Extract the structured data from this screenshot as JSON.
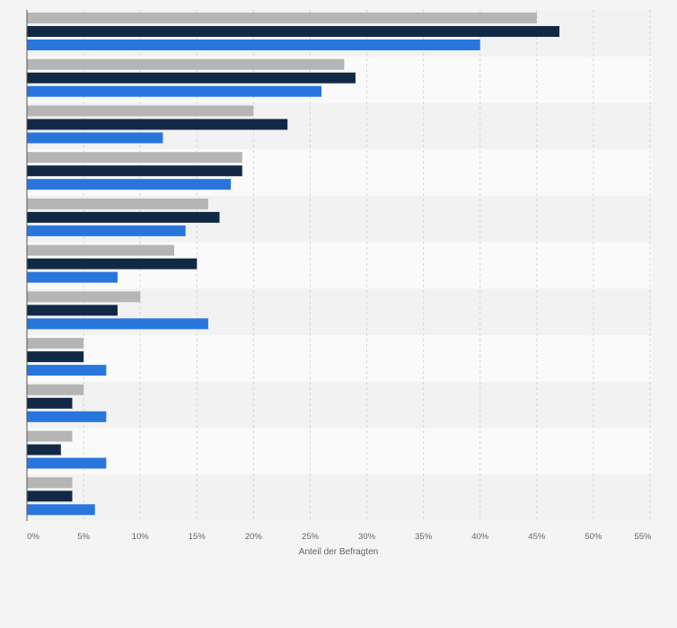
{
  "chart_data": {
    "type": "bar",
    "orientation": "horizontal",
    "xlabel": "Anteil der Befragten",
    "ylabel": "",
    "xlim": [
      0,
      55
    ],
    "x_ticks": [
      0,
      5,
      10,
      15,
      20,
      25,
      30,
      35,
      40,
      45,
      50,
      55
    ],
    "x_tick_labels": [
      "0%",
      "5%",
      "10%",
      "15%",
      "20%",
      "25%",
      "30%",
      "35%",
      "40%",
      "45%",
      "50%",
      "55%"
    ],
    "grid": true,
    "categories": [
      "",
      "",
      "",
      "",
      "",
      "",
      "",
      "",
      "",
      "",
      ""
    ],
    "series": [
      {
        "color": "#b5b5b5",
        "values": [
          45,
          28,
          20,
          19,
          16,
          13,
          10,
          5,
          5,
          4,
          4
        ]
      },
      {
        "color": "#122945",
        "values": [
          47,
          29,
          23,
          19,
          17,
          15,
          8,
          5,
          4,
          3,
          4
        ]
      },
      {
        "color": "#2876dd",
        "values": [
          40,
          26,
          12,
          18,
          14,
          8,
          16,
          7,
          7,
          7,
          6
        ]
      }
    ]
  }
}
